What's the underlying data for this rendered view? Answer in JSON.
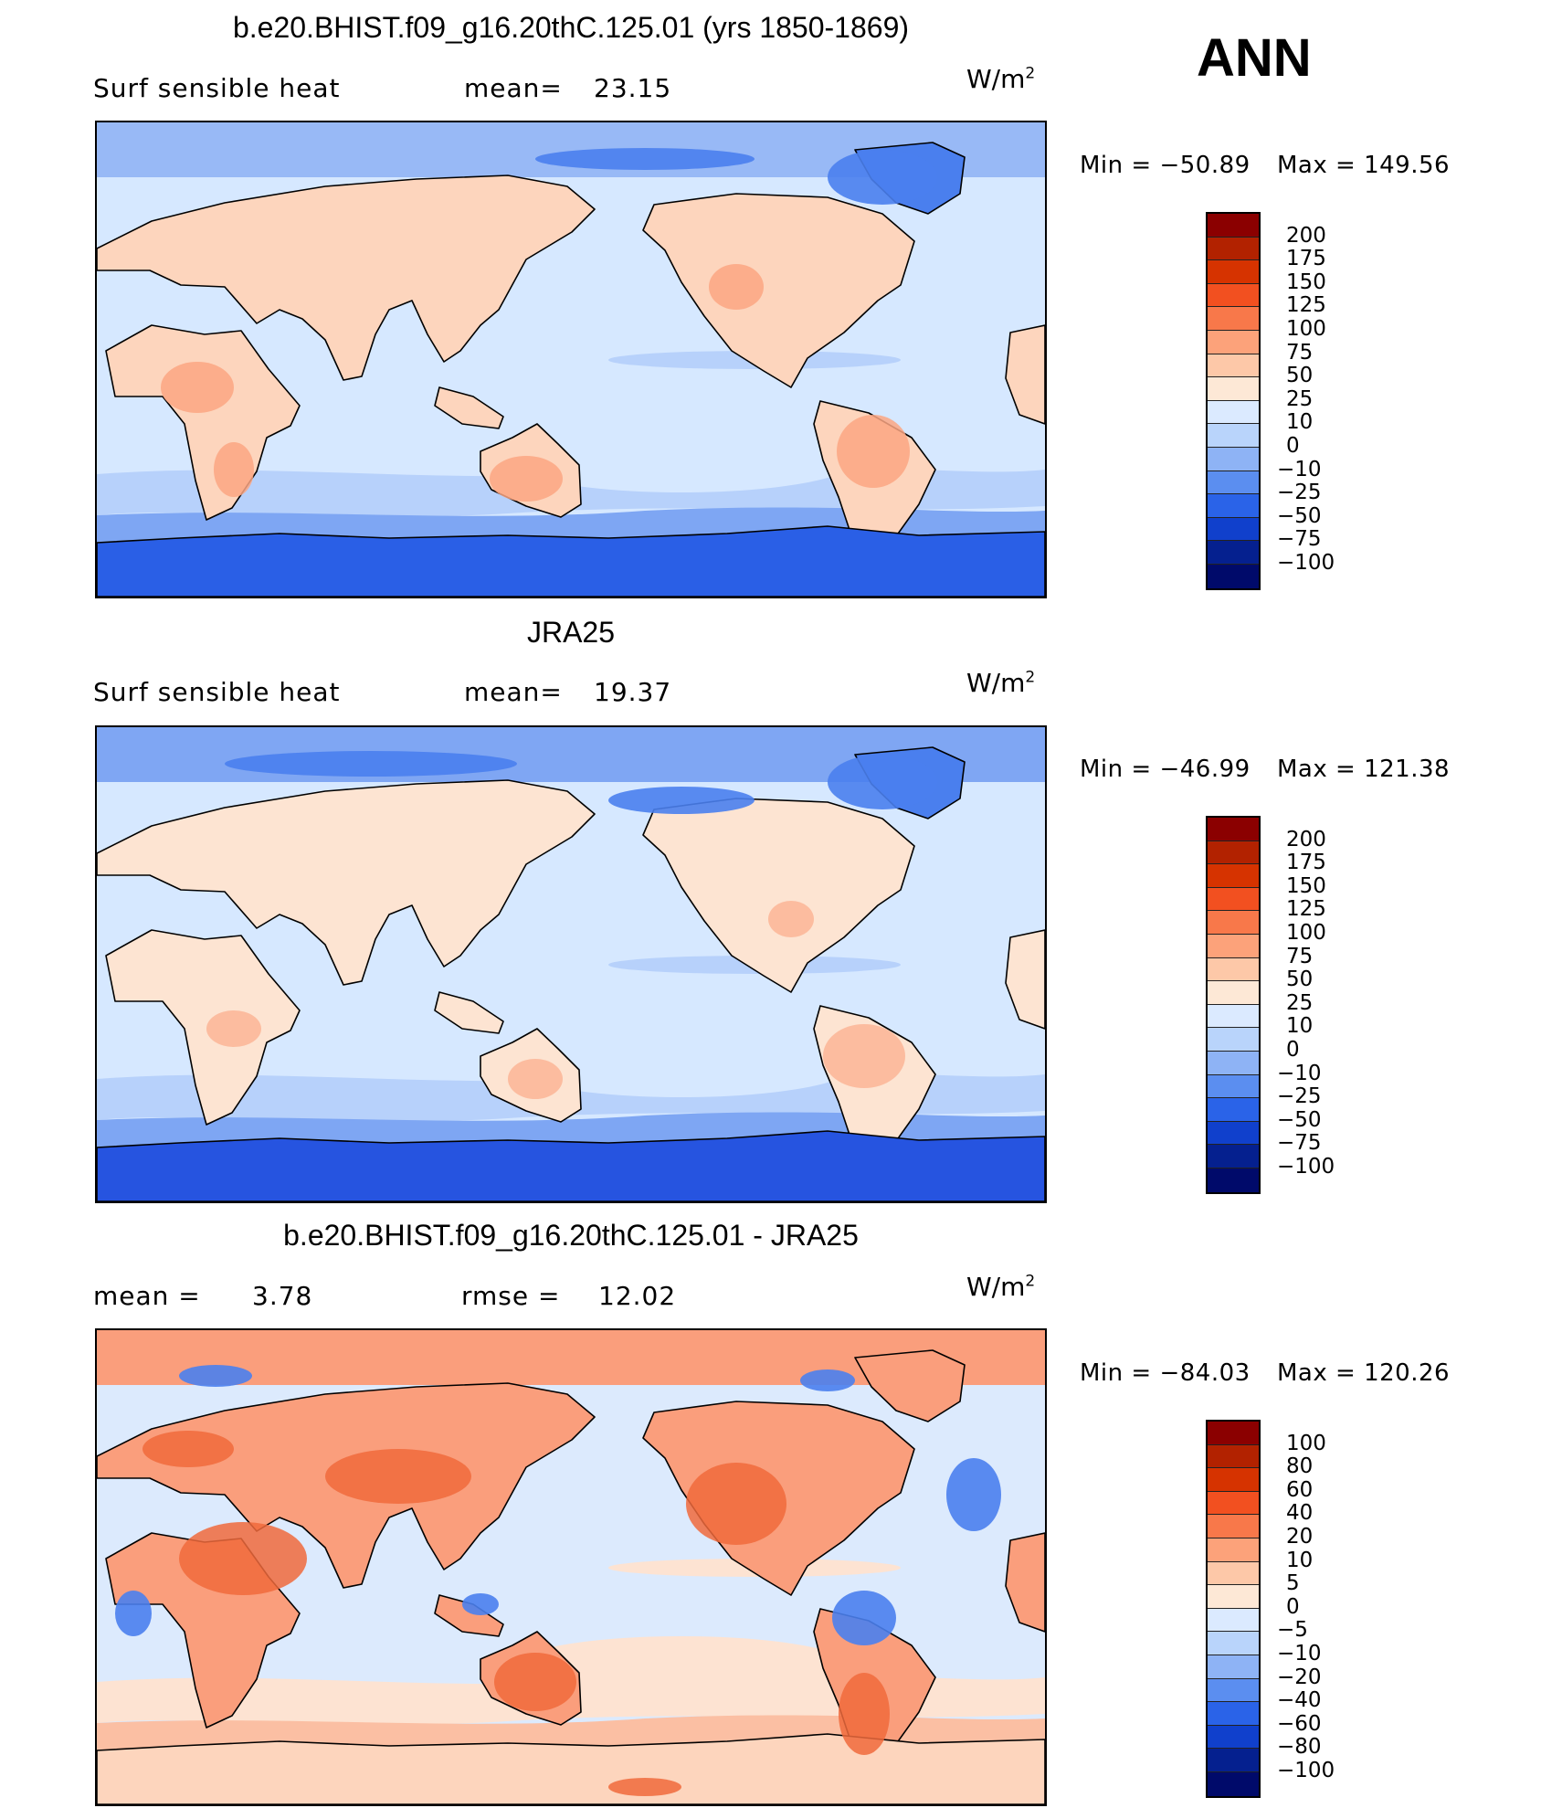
{
  "season": "ANN",
  "units_base": "W/m",
  "units_exp": "2",
  "panels": [
    {
      "title": "b.e20.BHIST.f09_g16.20thC.125.01 (yrs 1850-1869)",
      "left_label": "Surf  sensible  heat",
      "stat_label": "mean=",
      "stat_value": "23.15",
      "min_label": "Min  =  −50.89",
      "max_label": "Max  =  149.56",
      "variant": "model",
      "colorbar": {
        "labels": [
          "200",
          "175",
          "150",
          "125",
          "100",
          "75",
          "50",
          "25",
          "10",
          "0",
          "−10",
          "−25",
          "−50",
          "−75",
          "−100"
        ],
        "colors": [
          "#8b0000",
          "#b22200",
          "#d63300",
          "#f25020",
          "#f8784a",
          "#fca27a",
          "#fdc8a8",
          "#fde8d6",
          "#dbeaff",
          "#b9d4fb",
          "#8eb3f5",
          "#5b8ef0",
          "#2a63e8",
          "#1040cc",
          "#05208f",
          "#000a6a"
        ]
      }
    },
    {
      "title": "JRA25",
      "left_label": "Surf  sensible  heat",
      "stat_label": "mean=",
      "stat_value": "19.37",
      "min_label": "Min  =  −46.99",
      "max_label": "Max  =  121.38",
      "variant": "obs",
      "colorbar": {
        "labels": [
          "200",
          "175",
          "150",
          "125",
          "100",
          "75",
          "50",
          "25",
          "10",
          "0",
          "−10",
          "−25",
          "−50",
          "−75",
          "−100"
        ],
        "colors": [
          "#8b0000",
          "#b22200",
          "#d63300",
          "#f25020",
          "#f8784a",
          "#fca27a",
          "#fdc8a8",
          "#fde8d6",
          "#dbeaff",
          "#b9d4fb",
          "#8eb3f5",
          "#5b8ef0",
          "#2a63e8",
          "#1040cc",
          "#05208f",
          "#000a6a"
        ]
      }
    },
    {
      "title": "b.e20.BHIST.f09_g16.20thC.125.01 - JRA25",
      "left_label": "mean  =",
      "left_value": "3.78",
      "stat_label": "rmse  =",
      "stat_value": "12.02",
      "min_label": "Min  =  −84.03",
      "max_label": "Max  =  120.26",
      "variant": "diff",
      "colorbar": {
        "labels": [
          "100",
          "80",
          "60",
          "40",
          "20",
          "10",
          "5",
          "0",
          "−5",
          "−10",
          "−20",
          "−40",
          "−60",
          "−80",
          "−100"
        ],
        "colors": [
          "#8b0000",
          "#b22200",
          "#d63300",
          "#f25020",
          "#f8784a",
          "#fca27a",
          "#fdc8a8",
          "#fde8d6",
          "#dbeaff",
          "#b9d4fb",
          "#8eb3f5",
          "#5b8ef0",
          "#2a63e8",
          "#1040cc",
          "#05208f",
          "#000a6a"
        ]
      }
    }
  ]
}
